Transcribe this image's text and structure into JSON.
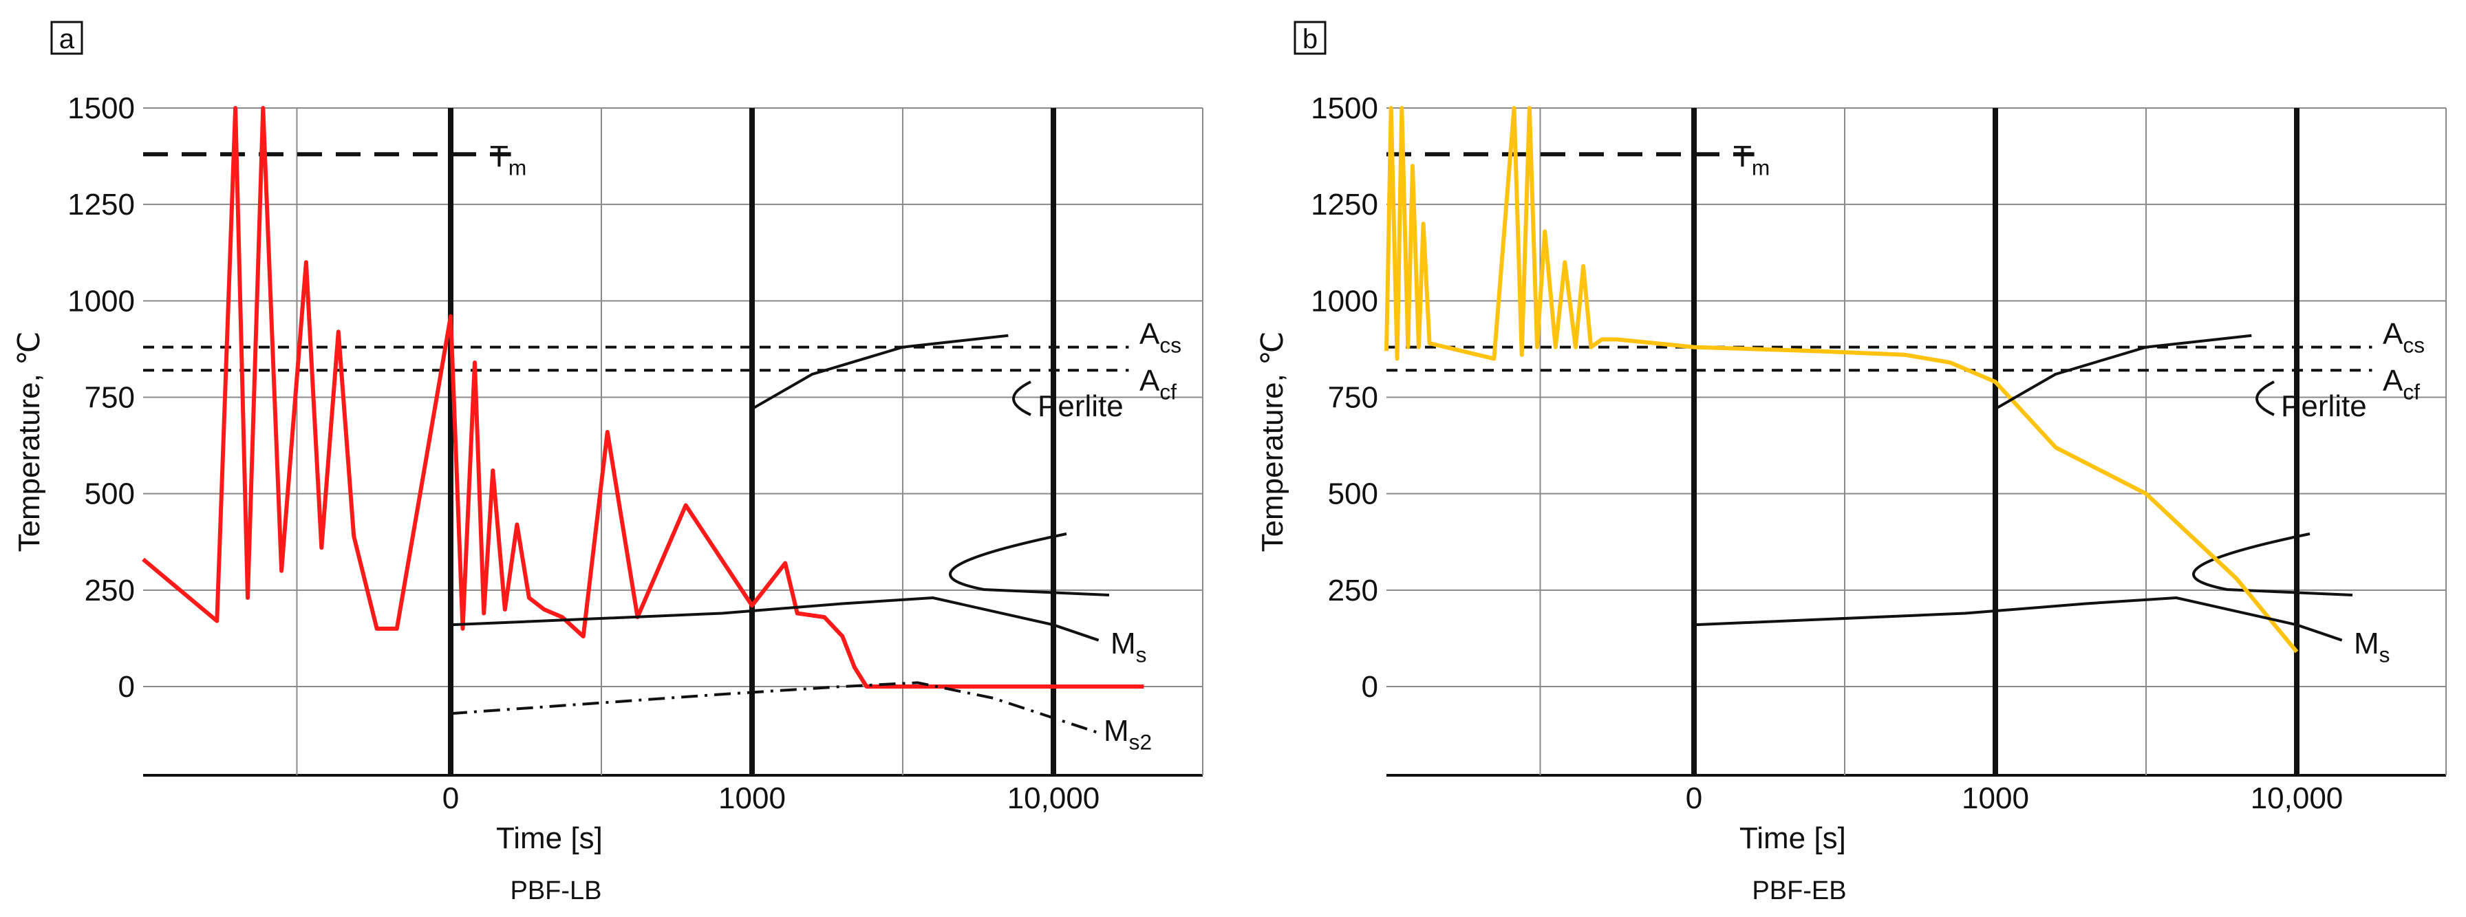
{
  "colors": {
    "grid": "#8a8a8a",
    "ink": "#111111",
    "curve_a": "#ff1a1a",
    "curve_b": "#ffc20e"
  },
  "chart_data": [
    {
      "type": "line",
      "panel_label": "a",
      "caption": "PBF-LB",
      "xlabel": "Time [s]",
      "ylabel": "Temperature, ℃",
      "x_ticks": [
        "0",
        "1000",
        "10,000"
      ],
      "y_ticks": [
        "1500",
        "1250",
        "1000",
        "750",
        "500",
        "250",
        "0"
      ],
      "ylim": [
        -250,
        1500
      ],
      "x_scale": "log-like: -2 = start of process, 0 = 0 s, 1 = 1000 s, 2 = 10,000 s",
      "xlim": [
        -2,
        2.5
      ],
      "reference_lines": [
        {
          "name": "Tm",
          "value": 1380,
          "x_range": [
            -2,
            0.2
          ],
          "style": "long-dash"
        },
        {
          "name": "Acs",
          "value": 880,
          "x_range": [
            -2,
            2.25
          ],
          "style": "dash"
        },
        {
          "name": "Acf",
          "value": 820,
          "x_range": [
            -2,
            2.25
          ],
          "style": "dash"
        }
      ],
      "labels": {
        "tm_main": "T",
        "tm_sub": "m",
        "acs_main": "A",
        "acs_sub": "cs",
        "acf_main": "A",
        "acf_sub": "cf",
        "pearlite": "Perlite",
        "ms_main": "M",
        "ms_sub": "s",
        "ms2_main": "M",
        "ms2_sub": "s2"
      },
      "series": [
        {
          "name": "thermal history (PBF-LB)",
          "color": "#ff1a1a",
          "x": [
            -2.0,
            -1.52,
            -1.4,
            -1.32,
            -1.22,
            -1.1,
            -0.94,
            -0.84,
            -0.73,
            -0.63,
            -0.48,
            -0.35,
            0.0,
            0.04,
            0.08,
            0.11,
            0.14,
            0.18,
            0.22,
            0.26,
            0.31,
            0.37,
            0.44,
            0.52,
            0.62,
            0.78,
            1.0,
            1.11,
            1.15,
            1.24,
            1.3,
            1.34,
            1.38,
            1.42,
            1.5,
            2.3
          ],
          "y": [
            330,
            170,
            1500,
            230,
            1500,
            300,
            1100,
            360,
            920,
            390,
            150,
            150,
            960,
            150,
            840,
            190,
            560,
            200,
            420,
            230,
            200,
            180,
            130,
            660,
            180,
            470,
            210,
            320,
            190,
            180,
            130,
            50,
            0,
            0,
            0,
            0
          ]
        },
        {
          "name": "Ms",
          "color": "#111111",
          "x": [
            0.0,
            0.9,
            1.3,
            1.6,
            2.0,
            2.15
          ],
          "y": [
            160,
            190,
            215,
            230,
            160,
            120
          ]
        },
        {
          "name": "Ms2",
          "color": "#111111",
          "style": "dash-dot",
          "x": [
            0.0,
            0.9,
            1.3,
            1.55,
            1.8,
            2.15
          ],
          "y": [
            -70,
            -20,
            0,
            10,
            -30,
            -120
          ]
        },
        {
          "name": "Pearlite start",
          "color": "#111111",
          "x": [
            1.0,
            1.2,
            1.5,
            1.85
          ],
          "y": [
            720,
            810,
            880,
            910
          ]
        }
      ]
    },
    {
      "type": "line",
      "panel_label": "b",
      "caption": "PBF-EB",
      "xlabel": "Time [s]",
      "ylabel": "Temperature, ℃",
      "x_ticks": [
        "0",
        "1000",
        "10,000"
      ],
      "y_ticks": [
        "1500",
        "1250",
        "1000",
        "750",
        "500",
        "250",
        "0"
      ],
      "ylim": [
        -250,
        1500
      ],
      "xlim": [
        -2,
        2.5
      ],
      "reference_lines": [
        {
          "name": "Tm",
          "value": 1380,
          "x_range": [
            -2,
            0.2
          ],
          "style": "long-dash"
        },
        {
          "name": "Acs",
          "value": 880,
          "x_range": [
            -2,
            2.25
          ],
          "style": "dash"
        },
        {
          "name": "Acf",
          "value": 820,
          "x_range": [
            -2,
            2.25
          ],
          "style": "dash"
        }
      ],
      "labels": {
        "tm_main": "T",
        "tm_sub": "m",
        "acs_main": "A",
        "acs_sub": "cs",
        "acf_main": "A",
        "acf_sub": "cf",
        "pearlite": "Perlite",
        "ms_main": "M",
        "ms_sub": "s"
      },
      "series": [
        {
          "name": "thermal history (PBF-EB)",
          "color": "#ffc20e",
          "x": [
            -2.0,
            -1.97,
            -1.93,
            -1.9,
            -1.86,
            -1.83,
            -1.79,
            -1.76,
            -1.72,
            -1.3,
            -1.17,
            -1.12,
            -1.07,
            -1.02,
            -0.97,
            -0.9,
            -0.84,
            -0.77,
            -0.72,
            -0.67,
            -0.6,
            -0.5,
            0.0,
            0.4,
            0.7,
            0.85,
            1.0,
            1.2,
            1.5,
            1.8,
            2.0
          ],
          "y": [
            870,
            1500,
            850,
            1500,
            880,
            1350,
            880,
            1200,
            890,
            850,
            1500,
            860,
            1500,
            880,
            1180,
            880,
            1100,
            880,
            1090,
            880,
            900,
            900,
            880,
            870,
            860,
            840,
            790,
            620,
            500,
            280,
            90
          ]
        },
        {
          "name": "Ms",
          "color": "#111111",
          "x": [
            0.0,
            0.9,
            1.3,
            1.6,
            2.0,
            2.15
          ],
          "y": [
            160,
            190,
            215,
            230,
            160,
            120
          ]
        },
        {
          "name": "Pearlite start",
          "color": "#111111",
          "x": [
            1.0,
            1.2,
            1.5,
            1.85
          ],
          "y": [
            720,
            810,
            880,
            910
          ]
        }
      ]
    }
  ]
}
